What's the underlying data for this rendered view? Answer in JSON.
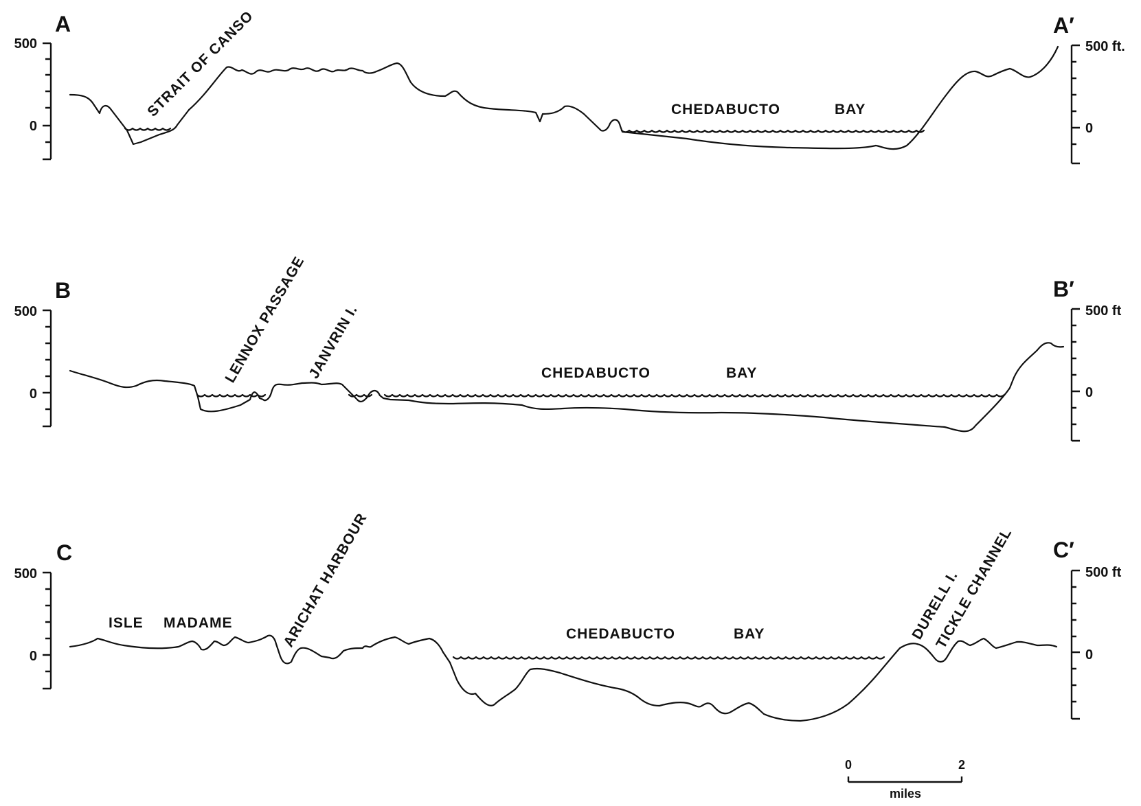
{
  "profiles": {
    "a": {
      "left_letter": "A",
      "right_letter": "A′",
      "left_ticks": {
        "top": "500",
        "zero": "0"
      },
      "right_ticks": {
        "top": "500 ft.",
        "zero": "0"
      },
      "labels": {
        "strait": "STRAIT OF CANSO",
        "chedabucto": "CHEDABUCTO",
        "bay": "BAY"
      }
    },
    "b": {
      "left_letter": "B",
      "right_letter": "B′",
      "left_ticks": {
        "top": "500",
        "zero": "0"
      },
      "right_ticks": {
        "top": "500 ft",
        "zero": "0"
      },
      "labels": {
        "lennox": "LENNOX PASSAGE",
        "janvrin": "JANVRIN I.",
        "chedabucto": "CHEDABUCTO",
        "bay": "BAY"
      }
    },
    "c": {
      "left_letter": "C",
      "right_letter": "C′",
      "left_ticks": {
        "top": "500",
        "zero": "0"
      },
      "right_ticks": {
        "top": "500 ft",
        "zero": "0"
      },
      "labels": {
        "isle": "ISLE",
        "madame": "MADAME",
        "arichat": "ARICHAT HARBOUR",
        "chedabucto": "CHEDABUCTO",
        "bay": "BAY",
        "durell": "DURELL I.",
        "tickle": "TICKLE CHANNEL"
      }
    }
  },
  "scale_bar": {
    "start": "0",
    "end": "2",
    "unit": "miles"
  }
}
